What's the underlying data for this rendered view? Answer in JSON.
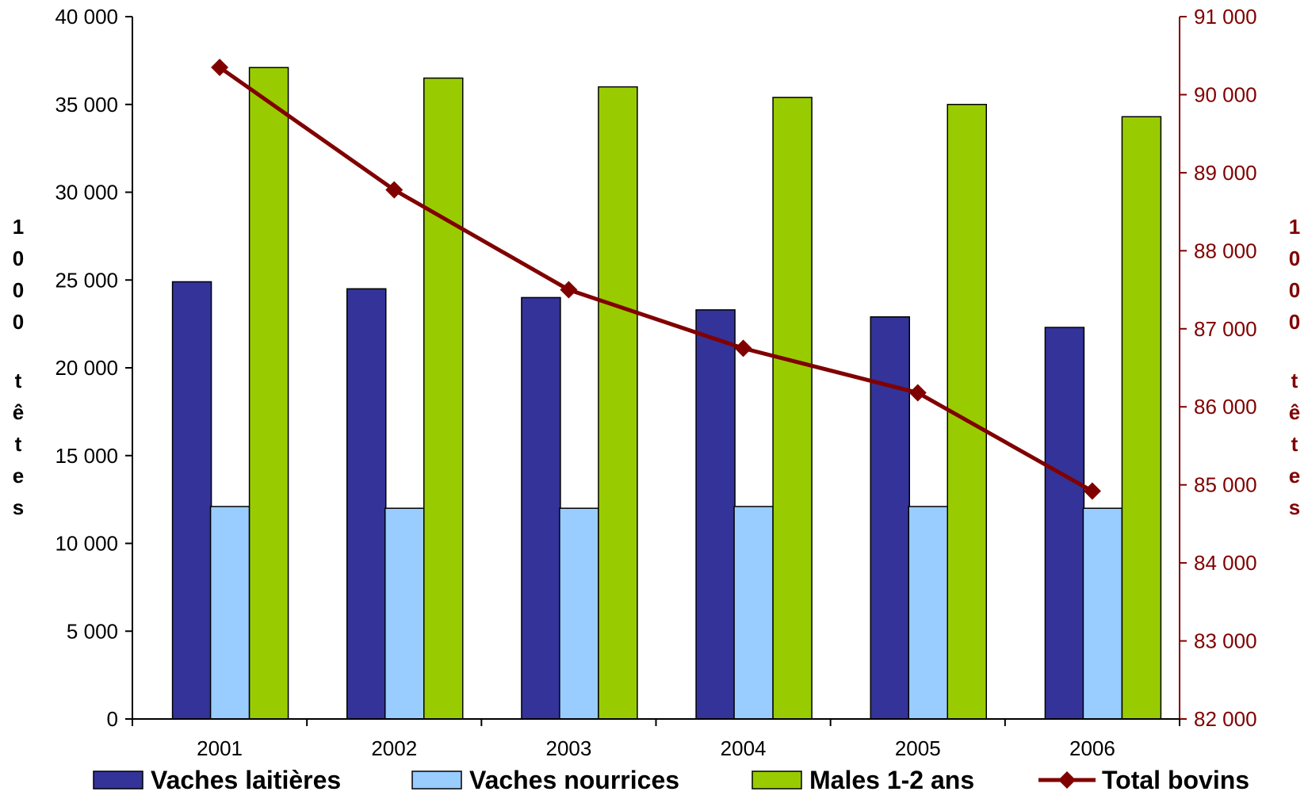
{
  "colors": {
    "vaches_laitieres": "#333399",
    "vaches_nourrices": "#99CCFF",
    "males": "#99CC00",
    "total": "#800000",
    "axis_left": "#000000",
    "axis_right": "#800000"
  },
  "chart_data": {
    "type": "bar",
    "title": "",
    "categories": [
      "2001",
      "2002",
      "2003",
      "2004",
      "2005",
      "2006"
    ],
    "series": [
      {
        "name": "Vaches laitières",
        "type": "bar",
        "axis": "left",
        "color_key": "vaches_laitieres",
        "values": [
          24900,
          24500,
          24000,
          23300,
          22900,
          22300
        ]
      },
      {
        "name": "Vaches nourrices",
        "type": "bar",
        "axis": "left",
        "color_key": "vaches_nourrices",
        "values": [
          12100,
          12000,
          12000,
          12100,
          12100,
          12000
        ]
      },
      {
        "name": "Males 1-2 ans",
        "type": "bar",
        "axis": "left",
        "color_key": "males",
        "values": [
          37100,
          36500,
          36000,
          35400,
          35000,
          34300
        ]
      },
      {
        "name": "Total bovins",
        "type": "line",
        "axis": "right",
        "color_key": "total",
        "marker": "diamond",
        "values": [
          90350,
          88780,
          87500,
          86750,
          86180,
          84920
        ]
      }
    ],
    "y_left": {
      "label": "1000 têtes",
      "min": 0,
      "max": 40000,
      "ticks": [
        "0",
        "5 000",
        "10 000",
        "15 000",
        "20 000",
        "25 000",
        "30 000",
        "35 000",
        "40 000"
      ]
    },
    "y_right": {
      "label": "1000 têtes",
      "min": 82000,
      "max": 91000,
      "ticks": [
        "82 000",
        "83 000",
        "84 000",
        "85 000",
        "86 000",
        "87 000",
        "88 000",
        "89 000",
        "90 000",
        "91 000"
      ]
    },
    "grid": false,
    "legend_position": "bottom"
  }
}
